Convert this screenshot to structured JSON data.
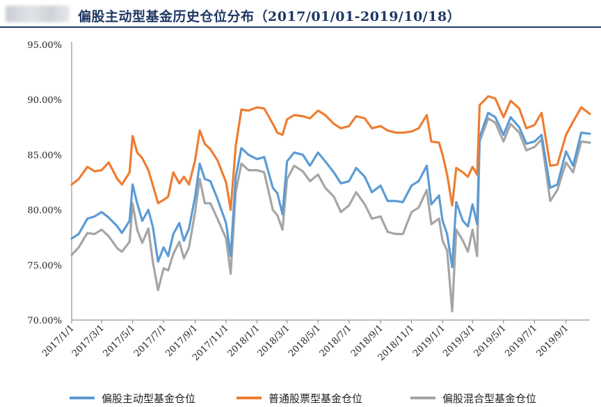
{
  "title": "偏股主动型基金历史仓位分布（2017/01/01-2019/10/18）",
  "colors": {
    "title": "#1f3864",
    "series": [
      "#5b9bd5",
      "#ed7d31",
      "#a5a5a5"
    ]
  },
  "chart_data": {
    "type": "line",
    "title": "偏股主动型基金历史仓位分布（2017/01/01-2019/10/18）",
    "xlabel": "",
    "ylabel": "",
    "ylim": [
      70,
      95
    ],
    "yticks": [
      "70.00%",
      "75.00%",
      "80.00%",
      "85.00%",
      "90.00%",
      "95.00%"
    ],
    "xticks": [
      "2017/1/1",
      "2017/3/1",
      "2017/5/1",
      "2017/7/1",
      "2017/9/1",
      "2017/11/1",
      "2018/1/1",
      "2018/3/1",
      "2018/5/1",
      "2018/7/1",
      "2018/9/1",
      "2018/11/1",
      "2019/1/1",
      "2019/3/1",
      "2019/5/1",
      "2019/7/1",
      "2019/9/1"
    ],
    "x_range": [
      "2017/1/1",
      "2019/10/18"
    ],
    "grid": false,
    "legend_position": "bottom",
    "series": [
      {
        "name": "偏股主动型基金仓位",
        "color": "#5b9bd5",
        "points": [
          [
            "2017/1/1",
            77.4
          ],
          [
            "2017/1/15",
            77.8
          ],
          [
            "2017/2/1",
            79.2
          ],
          [
            "2017/2/15",
            79.4
          ],
          [
            "2017/3/1",
            79.8
          ],
          [
            "2017/3/15",
            79.3
          ],
          [
            "2017/4/1",
            78.5
          ],
          [
            "2017/4/10",
            77.9
          ],
          [
            "2017/4/25",
            79.0
          ],
          [
            "2017/5/1",
            82.3
          ],
          [
            "2017/5/10",
            80.6
          ],
          [
            "2017/5/20",
            79.0
          ],
          [
            "2017/6/1",
            80.0
          ],
          [
            "2017/6/10",
            78.4
          ],
          [
            "2017/6/20",
            75.3
          ],
          [
            "2017/7/1",
            76.6
          ],
          [
            "2017/7/10",
            75.8
          ],
          [
            "2017/7/20",
            77.8
          ],
          [
            "2017/8/1",
            78.8
          ],
          [
            "2017/8/10",
            77.2
          ],
          [
            "2017/8/20",
            78.3
          ],
          [
            "2017/9/1",
            81.2
          ],
          [
            "2017/9/10",
            84.2
          ],
          [
            "2017/9/20",
            82.8
          ],
          [
            "2017/10/1",
            82.6
          ],
          [
            "2017/10/15",
            81.0
          ],
          [
            "2017/11/1",
            78.8
          ],
          [
            "2017/11/10",
            75.8
          ],
          [
            "2017/11/20",
            83.0
          ],
          [
            "2017/12/1",
            85.6
          ],
          [
            "2017/12/15",
            85.0
          ],
          [
            "2018/1/1",
            84.6
          ],
          [
            "2018/1/15",
            84.8
          ],
          [
            "2018/2/1",
            82.0
          ],
          [
            "2018/2/10",
            81.5
          ],
          [
            "2018/2/20",
            79.6
          ],
          [
            "2018/3/1",
            84.4
          ],
          [
            "2018/3/15",
            85.2
          ],
          [
            "2018/4/1",
            85.0
          ],
          [
            "2018/4/15",
            84.0
          ],
          [
            "2018/5/1",
            85.2
          ],
          [
            "2018/5/15",
            84.4
          ],
          [
            "2018/6/1",
            83.4
          ],
          [
            "2018/6/15",
            82.4
          ],
          [
            "2018/7/1",
            82.6
          ],
          [
            "2018/7/15",
            83.8
          ],
          [
            "2018/8/1",
            83.0
          ],
          [
            "2018/8/15",
            81.6
          ],
          [
            "2018/9/1",
            82.2
          ],
          [
            "2018/9/15",
            80.8
          ],
          [
            "2018/10/1",
            80.8
          ],
          [
            "2018/10/15",
            80.7
          ],
          [
            "2018/11/1",
            82.2
          ],
          [
            "2018/11/15",
            82.6
          ],
          [
            "2018/12/1",
            84.0
          ],
          [
            "2018/12/10",
            80.5
          ],
          [
            "2018/12/25",
            81.3
          ],
          [
            "2019/1/1",
            79.0
          ],
          [
            "2019/1/10",
            77.8
          ],
          [
            "2019/1/20",
            74.8
          ],
          [
            "2019/1/28",
            80.7
          ],
          [
            "2019/2/10",
            79.0
          ],
          [
            "2019/2/20",
            78.5
          ],
          [
            "2019/3/1",
            80.5
          ],
          [
            "2019/3/10",
            78.7
          ],
          [
            "2019/3/15",
            86.6
          ],
          [
            "2019/4/1",
            88.8
          ],
          [
            "2019/4/15",
            88.4
          ],
          [
            "2019/5/1",
            86.8
          ],
          [
            "2019/5/15",
            88.4
          ],
          [
            "2019/6/1",
            87.5
          ],
          [
            "2019/6/15",
            86.0
          ],
          [
            "2019/7/1",
            86.2
          ],
          [
            "2019/7/15",
            86.8
          ],
          [
            "2019/8/1",
            82.0
          ],
          [
            "2019/8/15",
            82.3
          ],
          [
            "2019/9/1",
            85.3
          ],
          [
            "2019/9/15",
            84.0
          ],
          [
            "2019/10/1",
            87.0
          ],
          [
            "2019/10/18",
            86.9
          ]
        ]
      },
      {
        "name": "普通股票型基金仓位",
        "color": "#ed7d31",
        "points": [
          [
            "2017/1/1",
            82.3
          ],
          [
            "2017/1/15",
            82.8
          ],
          [
            "2017/2/1",
            83.9
          ],
          [
            "2017/2/15",
            83.5
          ],
          [
            "2017/3/1",
            83.6
          ],
          [
            "2017/3/15",
            84.3
          ],
          [
            "2017/4/1",
            82.8
          ],
          [
            "2017/4/10",
            82.3
          ],
          [
            "2017/4/25",
            83.4
          ],
          [
            "2017/5/1",
            86.7
          ],
          [
            "2017/5/10",
            85.2
          ],
          [
            "2017/5/20",
            84.7
          ],
          [
            "2017/6/1",
            83.6
          ],
          [
            "2017/6/10",
            82.2
          ],
          [
            "2017/6/20",
            80.6
          ],
          [
            "2017/7/1",
            80.9
          ],
          [
            "2017/7/10",
            81.2
          ],
          [
            "2017/7/20",
            83.4
          ],
          [
            "2017/8/1",
            82.4
          ],
          [
            "2017/8/10",
            83.0
          ],
          [
            "2017/8/20",
            82.3
          ],
          [
            "2017/9/1",
            84.5
          ],
          [
            "2017/9/10",
            87.2
          ],
          [
            "2017/9/20",
            86.0
          ],
          [
            "2017/10/1",
            85.5
          ],
          [
            "2017/10/15",
            84.5
          ],
          [
            "2017/11/1",
            82.5
          ],
          [
            "2017/11/10",
            80.0
          ],
          [
            "2017/11/20",
            85.8
          ],
          [
            "2017/12/1",
            89.1
          ],
          [
            "2017/12/15",
            89.0
          ],
          [
            "2018/1/1",
            89.3
          ],
          [
            "2018/1/15",
            89.2
          ],
          [
            "2018/2/1",
            87.8
          ],
          [
            "2018/2/10",
            87.0
          ],
          [
            "2018/2/20",
            86.8
          ],
          [
            "2018/3/1",
            88.2
          ],
          [
            "2018/3/15",
            88.6
          ],
          [
            "2018/4/1",
            88.5
          ],
          [
            "2018/4/15",
            88.3
          ],
          [
            "2018/5/1",
            89.0
          ],
          [
            "2018/5/15",
            88.6
          ],
          [
            "2018/6/1",
            87.8
          ],
          [
            "2018/6/15",
            87.4
          ],
          [
            "2018/7/1",
            87.6
          ],
          [
            "2018/7/15",
            88.5
          ],
          [
            "2018/8/1",
            88.3
          ],
          [
            "2018/8/15",
            87.4
          ],
          [
            "2018/9/1",
            87.6
          ],
          [
            "2018/9/15",
            87.2
          ],
          [
            "2018/10/1",
            87.0
          ],
          [
            "2018/10/15",
            87.0
          ],
          [
            "2018/11/1",
            87.1
          ],
          [
            "2018/11/15",
            87.4
          ],
          [
            "2018/12/1",
            88.6
          ],
          [
            "2018/12/10",
            86.2
          ],
          [
            "2018/12/25",
            86.1
          ],
          [
            "2019/1/1",
            85.0
          ],
          [
            "2019/1/10",
            83.2
          ],
          [
            "2019/1/20",
            80.4
          ],
          [
            "2019/1/28",
            83.8
          ],
          [
            "2019/2/10",
            83.4
          ],
          [
            "2019/2/20",
            83.0
          ],
          [
            "2019/3/1",
            83.9
          ],
          [
            "2019/3/10",
            83.2
          ],
          [
            "2019/3/15",
            89.5
          ],
          [
            "2019/4/1",
            90.3
          ],
          [
            "2019/4/15",
            90.1
          ],
          [
            "2019/5/1",
            88.4
          ],
          [
            "2019/5/15",
            89.9
          ],
          [
            "2019/6/1",
            89.2
          ],
          [
            "2019/6/15",
            87.4
          ],
          [
            "2019/7/1",
            87.7
          ],
          [
            "2019/7/15",
            88.8
          ],
          [
            "2019/8/1",
            84.0
          ],
          [
            "2019/8/15",
            84.1
          ],
          [
            "2019/9/1",
            86.8
          ],
          [
            "2019/9/15",
            88.0
          ],
          [
            "2019/10/1",
            89.3
          ],
          [
            "2019/10/18",
            88.7
          ]
        ]
      },
      {
        "name": "偏股混合型基金仓位",
        "color": "#a5a5a5",
        "points": [
          [
            "2017/1/1",
            75.9
          ],
          [
            "2017/1/15",
            76.6
          ],
          [
            "2017/2/1",
            77.9
          ],
          [
            "2017/2/15",
            77.8
          ],
          [
            "2017/3/1",
            78.2
          ],
          [
            "2017/3/15",
            77.6
          ],
          [
            "2017/4/1",
            76.5
          ],
          [
            "2017/4/10",
            76.2
          ],
          [
            "2017/4/25",
            77.1
          ],
          [
            "2017/5/1",
            80.6
          ],
          [
            "2017/5/10",
            78.2
          ],
          [
            "2017/5/20",
            77.0
          ],
          [
            "2017/6/1",
            78.3
          ],
          [
            "2017/6/10",
            75.2
          ],
          [
            "2017/6/20",
            72.7
          ],
          [
            "2017/7/1",
            74.7
          ],
          [
            "2017/7/10",
            74.5
          ],
          [
            "2017/7/20",
            76.0
          ],
          [
            "2017/8/1",
            77.1
          ],
          [
            "2017/8/10",
            75.6
          ],
          [
            "2017/8/20",
            76.6
          ],
          [
            "2017/9/1",
            79.8
          ],
          [
            "2017/9/10",
            82.8
          ],
          [
            "2017/9/20",
            80.6
          ],
          [
            "2017/10/1",
            80.6
          ],
          [
            "2017/10/15",
            79.2
          ],
          [
            "2017/11/1",
            77.4
          ],
          [
            "2017/11/10",
            74.2
          ],
          [
            "2017/11/20",
            81.6
          ],
          [
            "2017/12/1",
            84.2
          ],
          [
            "2017/12/15",
            83.6
          ],
          [
            "2018/1/1",
            83.6
          ],
          [
            "2018/1/15",
            83.4
          ],
          [
            "2018/2/1",
            80.0
          ],
          [
            "2018/2/10",
            79.5
          ],
          [
            "2018/2/20",
            78.2
          ],
          [
            "2018/3/1",
            82.8
          ],
          [
            "2018/3/15",
            84.0
          ],
          [
            "2018/4/1",
            83.5
          ],
          [
            "2018/4/15",
            82.6
          ],
          [
            "2018/5/1",
            83.2
          ],
          [
            "2018/5/15",
            82.0
          ],
          [
            "2018/6/1",
            81.2
          ],
          [
            "2018/6/15",
            79.8
          ],
          [
            "2018/7/1",
            80.4
          ],
          [
            "2018/7/15",
            81.6
          ],
          [
            "2018/8/1",
            80.5
          ],
          [
            "2018/8/15",
            79.2
          ],
          [
            "2018/9/1",
            79.4
          ],
          [
            "2018/9/15",
            78.0
          ],
          [
            "2018/10/1",
            77.8
          ],
          [
            "2018/10/15",
            77.8
          ],
          [
            "2018/11/1",
            79.8
          ],
          [
            "2018/11/15",
            80.2
          ],
          [
            "2018/12/1",
            81.8
          ],
          [
            "2018/12/10",
            78.7
          ],
          [
            "2018/12/25",
            79.2
          ],
          [
            "2019/1/1",
            77.2
          ],
          [
            "2019/1/10",
            76.3
          ],
          [
            "2019/1/20",
            70.8
          ],
          [
            "2019/1/28",
            78.2
          ],
          [
            "2019/2/10",
            77.2
          ],
          [
            "2019/2/20",
            76.2
          ],
          [
            "2019/3/1",
            78.2
          ],
          [
            "2019/3/10",
            75.8
          ],
          [
            "2019/3/15",
            86.2
          ],
          [
            "2019/4/1",
            88.3
          ],
          [
            "2019/4/15",
            87.9
          ],
          [
            "2019/5/1",
            86.2
          ],
          [
            "2019/5/15",
            87.8
          ],
          [
            "2019/6/1",
            87.0
          ],
          [
            "2019/6/15",
            85.4
          ],
          [
            "2019/7/1",
            85.7
          ],
          [
            "2019/7/15",
            86.4
          ],
          [
            "2019/8/1",
            80.8
          ],
          [
            "2019/8/15",
            81.8
          ],
          [
            "2019/9/1",
            84.3
          ],
          [
            "2019/9/15",
            83.4
          ],
          [
            "2019/10/1",
            86.2
          ],
          [
            "2019/10/18",
            86.1
          ]
        ]
      }
    ]
  }
}
